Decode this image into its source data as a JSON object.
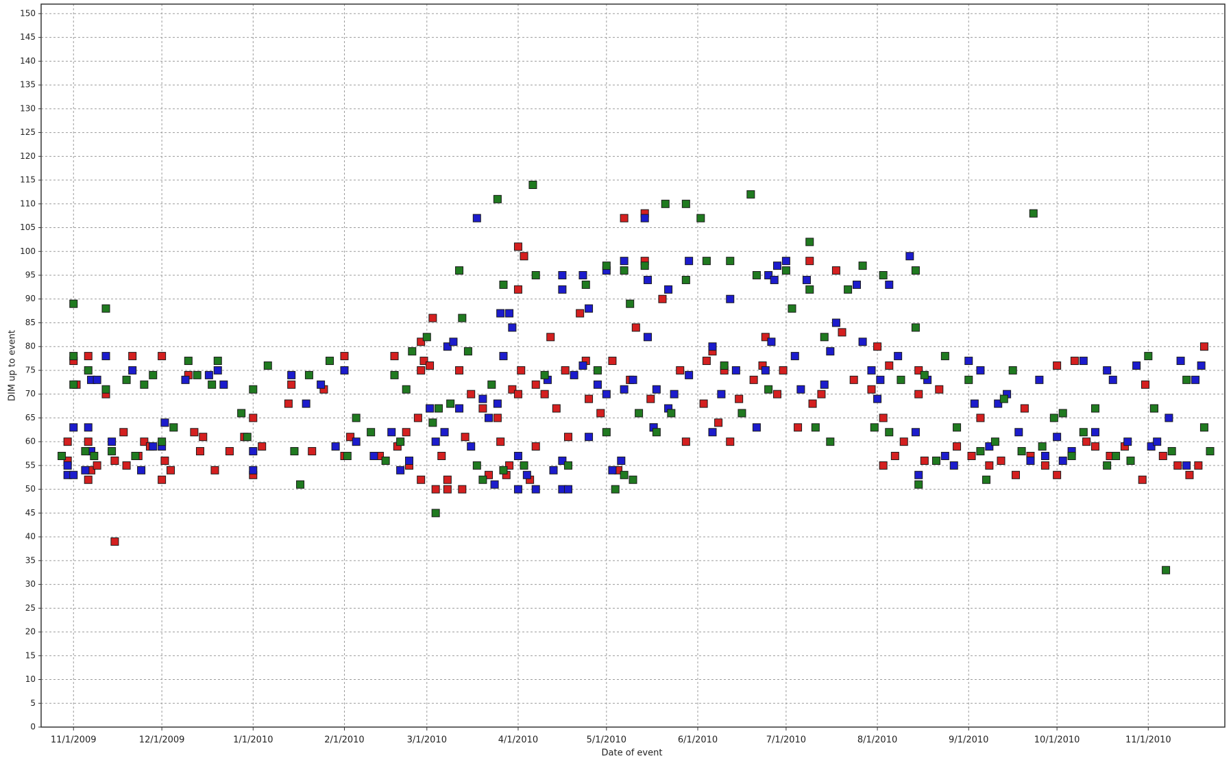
{
  "chart_data": {
    "type": "scatter",
    "xlabel": "Date of event",
    "ylabel": "DIM up to event",
    "xlim": [
      "2009-10-21",
      "2010-11-27"
    ],
    "xticks": [
      {
        "value": "2009-11-01",
        "label": "11/1/2009"
      },
      {
        "value": "2009-12-01",
        "label": "12/1/2009"
      },
      {
        "value": "2010-01-01",
        "label": "1/1/2010"
      },
      {
        "value": "2010-02-01",
        "label": "2/1/2010"
      },
      {
        "value": "2010-03-01",
        "label": "3/1/2010"
      },
      {
        "value": "2010-04-01",
        "label": "4/1/2010"
      },
      {
        "value": "2010-05-01",
        "label": "5/1/2010"
      },
      {
        "value": "2010-06-01",
        "label": "6/1/2010"
      },
      {
        "value": "2010-07-01",
        "label": "7/1/2010"
      },
      {
        "value": "2010-08-01",
        "label": "8/1/2010"
      },
      {
        "value": "2010-09-01",
        "label": "9/1/2010"
      },
      {
        "value": "2010-10-01",
        "label": "10/1/2010"
      },
      {
        "value": "2010-11-01",
        "label": "11/1/2010"
      }
    ],
    "ylim": [
      0,
      152
    ],
    "yticks": [
      0,
      5,
      10,
      15,
      20,
      25,
      30,
      35,
      40,
      45,
      50,
      55,
      60,
      65,
      70,
      75,
      80,
      85,
      90,
      95,
      100,
      105,
      110,
      115,
      120,
      125,
      130,
      135,
      140,
      145,
      150
    ],
    "grid": true,
    "series": [
      {
        "color": "#d42020",
        "x": [
          "2009-10-30",
          "2009-10-30",
          "2009-11-01",
          "2009-11-02",
          "2009-11-06",
          "2009-11-06",
          "2009-11-06",
          "2009-11-07",
          "2009-11-09",
          "2009-11-12",
          "2009-11-15",
          "2009-11-15",
          "2009-11-18",
          "2009-11-19",
          "2009-11-21",
          "2009-11-23",
          "2009-11-25",
          "2009-11-27",
          "2009-12-01",
          "2009-12-01",
          "2009-12-02",
          "2009-12-04",
          "2009-12-10",
          "2009-12-12",
          "2009-12-14",
          "2009-12-15",
          "2009-12-19",
          "2009-12-24",
          "2010-01-01",
          "2010-01-01",
          "2009-12-29",
          "2010-01-04",
          "2010-01-13",
          "2010-01-14",
          "2010-01-21",
          "2010-01-25",
          "2010-02-01",
          "2010-02-01",
          "2010-02-03",
          "2010-02-13",
          "2010-02-18",
          "2010-02-19",
          "2010-02-22",
          "2010-02-23",
          "2010-02-26",
          "2010-02-27",
          "2010-02-27",
          "2010-02-28",
          "2010-02-27",
          "2010-03-03",
          "2010-03-02",
          "2010-03-04",
          "2010-03-06",
          "2010-03-08",
          "2010-03-08",
          "2010-03-12",
          "2010-03-13",
          "2010-03-14",
          "2010-03-16",
          "2010-03-20",
          "2010-03-22",
          "2010-03-25",
          "2010-03-26",
          "2010-03-28",
          "2010-03-29",
          "2010-03-30",
          "2010-04-01",
          "2010-04-01",
          "2010-04-03",
          "2010-04-02",
          "2010-04-01",
          "2010-04-05",
          "2010-04-07",
          "2010-04-07",
          "2010-04-10",
          "2010-04-12",
          "2010-04-14",
          "2010-04-17",
          "2010-04-18",
          "2010-04-22",
          "2010-04-24",
          "2010-04-25",
          "2010-04-29",
          "2010-05-03",
          "2010-05-05",
          "2010-05-07",
          "2010-05-09",
          "2010-05-11",
          "2010-05-14",
          "2010-05-14",
          "2010-05-16",
          "2010-05-17",
          "2010-05-20",
          "2010-05-26",
          "2010-05-28",
          "2010-06-03",
          "2010-06-04",
          "2010-06-06",
          "2010-06-08",
          "2010-06-10",
          "2010-06-12",
          "2010-06-15",
          "2010-06-20",
          "2010-06-23",
          "2010-06-24",
          "2010-06-28",
          "2010-06-30",
          "2010-07-05",
          "2010-07-09",
          "2010-07-10",
          "2010-07-13",
          "2010-07-18",
          "2010-07-20",
          "2010-07-24",
          "2010-07-30",
          "2010-08-01",
          "2010-08-03",
          "2010-08-03",
          "2010-08-05",
          "2010-08-07",
          "2010-08-10",
          "2010-08-15",
          "2010-08-15",
          "2010-08-17",
          "2010-08-22",
          "2010-08-28",
          "2010-09-02",
          "2010-09-05",
          "2010-09-08",
          "2010-09-12",
          "2010-09-17",
          "2010-09-20",
          "2010-09-22",
          "2010-09-27",
          "2010-10-01",
          "2010-10-01",
          "2010-10-07",
          "2010-10-11",
          "2010-10-14",
          "2010-10-19",
          "2010-10-24",
          "2010-10-30",
          "2010-10-31",
          "2010-11-03",
          "2010-11-06",
          "2010-11-11",
          "2010-11-15",
          "2010-11-18",
          "2010-11-20"
        ],
        "values": [
          60,
          56,
          77,
          72,
          78,
          60,
          52,
          54,
          55,
          70,
          56,
          39,
          62,
          55,
          78,
          57,
          60,
          59,
          78,
          52,
          56,
          54,
          74,
          62,
          58,
          61,
          54,
          58,
          53,
          65,
          61,
          59,
          68,
          72,
          58,
          71,
          78,
          57,
          61,
          57,
          78,
          59,
          62,
          55,
          65,
          52,
          75,
          77,
          81,
          86,
          76,
          50,
          57,
          50,
          52,
          75,
          50,
          61,
          70,
          67,
          53,
          65,
          60,
          53,
          55,
          71,
          101,
          92,
          99,
          75,
          70,
          52,
          72,
          59,
          70,
          82,
          67,
          75,
          61,
          87,
          77,
          69,
          66,
          77,
          54,
          107,
          73,
          84,
          98,
          108,
          69,
          63,
          90,
          75,
          60,
          68,
          77,
          79,
          64,
          75,
          60,
          69,
          73,
          76,
          82,
          70,
          75,
          63,
          98,
          68,
          70,
          96,
          83,
          73,
          71,
          80,
          65,
          55,
          76,
          57,
          60,
          70,
          75,
          56,
          71,
          59,
          57,
          65,
          55,
          56,
          53,
          67,
          57,
          55,
          53,
          76,
          77,
          60,
          59,
          57,
          59,
          52,
          72,
          67,
          57,
          55,
          53,
          55,
          80
        ]
      },
      {
        "color": "#1c1ccc",
        "x": [
          "2009-10-30",
          "2009-10-30",
          "2009-11-01",
          "2009-11-01",
          "2009-11-05",
          "2009-11-06",
          "2009-11-07",
          "2009-11-09",
          "2009-11-07",
          "2009-11-12",
          "2009-11-14",
          "2009-11-21",
          "2009-11-24",
          "2009-11-28",
          "2009-12-01",
          "2009-12-02",
          "2009-12-09",
          "2009-12-17",
          "2009-12-20",
          "2009-12-22",
          "2010-01-01",
          "2010-01-01",
          "2010-01-14",
          "2010-01-19",
          "2010-01-24",
          "2010-01-29",
          "2010-02-01",
          "2010-02-05",
          "2010-02-11",
          "2010-02-17",
          "2010-02-20",
          "2010-02-23",
          "2010-03-02",
          "2010-03-04",
          "2010-03-07",
          "2010-03-08",
          "2010-03-10",
          "2010-03-12",
          "2010-03-16",
          "2010-03-18",
          "2010-03-20",
          "2010-03-22",
          "2010-03-24",
          "2010-03-25",
          "2010-03-26",
          "2010-03-27",
          "2010-03-29",
          "2010-03-30",
          "2010-04-01",
          "2010-04-01",
          "2010-04-04",
          "2010-04-07",
          "2010-04-11",
          "2010-04-13",
          "2010-04-16",
          "2010-04-16",
          "2010-04-16",
          "2010-04-16",
          "2010-04-18",
          "2010-04-20",
          "2010-04-23",
          "2010-04-23",
          "2010-04-25",
          "2010-04-25",
          "2010-04-28",
          "2010-05-01",
          "2010-05-01",
          "2010-05-03",
          "2010-05-06",
          "2010-05-07",
          "2010-05-07",
          "2010-05-10",
          "2010-05-14",
          "2010-05-15",
          "2010-05-15",
          "2010-05-17",
          "2010-05-18",
          "2010-05-22",
          "2010-05-22",
          "2010-05-24",
          "2010-05-29",
          "2010-05-29",
          "2010-06-06",
          "2010-06-06",
          "2010-06-09",
          "2010-06-12",
          "2010-06-14",
          "2010-06-21",
          "2010-06-24",
          "2010-06-25",
          "2010-06-26",
          "2010-06-27",
          "2010-06-28",
          "2010-07-01",
          "2010-07-04",
          "2010-07-06",
          "2010-07-08",
          "2010-07-14",
          "2010-07-16",
          "2010-07-18",
          "2010-07-25",
          "2010-07-27",
          "2010-07-30",
          "2010-08-01",
          "2010-08-02",
          "2010-08-05",
          "2010-08-08",
          "2010-08-12",
          "2010-08-14",
          "2010-08-15",
          "2010-08-18",
          "2010-08-24",
          "2010-08-27",
          "2010-09-01",
          "2010-09-03",
          "2010-09-05",
          "2010-09-08",
          "2010-09-11",
          "2010-09-14",
          "2010-09-18",
          "2010-09-22",
          "2010-09-25",
          "2010-09-27",
          "2010-10-01",
          "2010-10-03",
          "2010-10-06",
          "2010-10-10",
          "2010-10-14",
          "2010-10-18",
          "2010-10-20",
          "2010-10-25",
          "2010-10-28",
          "2010-11-02",
          "2010-11-04",
          "2010-11-08",
          "2010-11-12",
          "2010-11-14",
          "2010-11-17",
          "2010-11-19"
        ],
        "values": [
          53,
          55,
          63,
          53,
          54,
          63,
          73,
          73,
          58,
          78,
          60,
          75,
          54,
          59,
          59,
          64,
          73,
          74,
          75,
          72,
          54,
          58,
          74,
          68,
          72,
          59,
          75,
          60,
          57,
          62,
          54,
          56,
          67,
          60,
          62,
          80,
          81,
          67,
          59,
          107,
          69,
          65,
          51,
          68,
          87,
          78,
          87,
          84,
          50,
          57,
          53,
          50,
          73,
          54,
          50,
          95,
          92,
          56,
          50,
          74,
          95,
          76,
          88,
          61,
          72,
          96,
          70,
          54,
          56,
          98,
          71,
          73,
          107,
          94,
          82,
          63,
          71,
          92,
          67,
          70,
          74,
          98,
          62,
          80,
          70,
          90,
          75,
          63,
          75,
          95,
          81,
          94,
          97,
          98,
          78,
          71,
          94,
          72,
          79,
          85,
          93,
          81,
          75,
          69,
          73,
          93,
          78,
          99,
          62,
          53,
          73,
          57,
          55,
          77,
          68,
          75,
          59,
          68,
          70,
          62,
          56,
          73,
          57,
          61,
          56,
          58,
          77,
          62,
          75,
          73,
          60,
          76,
          59,
          60,
          65,
          77,
          55,
          73,
          76
        ]
      },
      {
        "color": "#207a20",
        "x": [
          "2009-10-28",
          "2009-11-01",
          "2009-11-01",
          "2009-11-01",
          "2009-11-05",
          "2009-11-06",
          "2009-11-08",
          "2009-11-12",
          "2009-11-12",
          "2009-11-14",
          "2009-11-19",
          "2009-11-22",
          "2009-11-25",
          "2009-11-28",
          "2009-12-01",
          "2009-12-05",
          "2009-12-10",
          "2009-12-13",
          "2009-12-18",
          "2009-12-20",
          "2009-12-28",
          "2009-12-30",
          "2010-01-01",
          "2010-01-06",
          "2010-01-15",
          "2010-01-17",
          "2010-01-20",
          "2010-01-27",
          "2010-02-02",
          "2010-02-05",
          "2010-02-10",
          "2010-02-15",
          "2010-02-18",
          "2010-02-20",
          "2010-02-22",
          "2010-02-24",
          "2010-03-01",
          "2010-03-03",
          "2010-03-04",
          "2010-03-05",
          "2010-03-09",
          "2010-03-12",
          "2010-03-13",
          "2010-03-15",
          "2010-03-18",
          "2010-03-20",
          "2010-03-23",
          "2010-03-25",
          "2010-03-27",
          "2010-03-27",
          "2010-04-03",
          "2010-04-06",
          "2010-04-07",
          "2010-04-10",
          "2010-04-18",
          "2010-04-24",
          "2010-04-28",
          "2010-05-01",
          "2010-05-01",
          "2010-05-04",
          "2010-05-07",
          "2010-05-07",
          "2010-05-09",
          "2010-05-10",
          "2010-05-12",
          "2010-05-14",
          "2010-05-18",
          "2010-05-21",
          "2010-05-23",
          "2010-05-28",
          "2010-05-28",
          "2010-06-02",
          "2010-06-04",
          "2010-06-10",
          "2010-06-12",
          "2010-06-16",
          "2010-06-19",
          "2010-06-21",
          "2010-06-25",
          "2010-07-01",
          "2010-07-03",
          "2010-07-09",
          "2010-07-09",
          "2010-07-11",
          "2010-07-14",
          "2010-07-16",
          "2010-07-22",
          "2010-07-27",
          "2010-07-31",
          "2010-08-03",
          "2010-08-05",
          "2010-08-09",
          "2010-08-14",
          "2010-08-14",
          "2010-08-15",
          "2010-08-17",
          "2010-08-21",
          "2010-08-24",
          "2010-08-28",
          "2010-09-01",
          "2010-09-05",
          "2010-09-07",
          "2010-09-10",
          "2010-09-13",
          "2010-09-16",
          "2010-09-19",
          "2010-09-23",
          "2010-09-26",
          "2010-09-30",
          "2010-10-03",
          "2010-10-06",
          "2010-10-10",
          "2010-10-14",
          "2010-10-18",
          "2010-10-21",
          "2010-10-26",
          "2010-11-01",
          "2010-11-03",
          "2010-11-07",
          "2010-11-09",
          "2010-11-14",
          "2010-11-20",
          "2010-11-22"
        ],
        "values": [
          57,
          89,
          78,
          72,
          58,
          75,
          57,
          88,
          71,
          58,
          73,
          57,
          72,
          74,
          60,
          63,
          77,
          74,
          72,
          77,
          66,
          61,
          71,
          76,
          58,
          51,
          74,
          77,
          57,
          65,
          62,
          56,
          74,
          60,
          71,
          79,
          82,
          64,
          45,
          67,
          68,
          96,
          86,
          79,
          55,
          52,
          72,
          111,
          93,
          54,
          55,
          114,
          95,
          74,
          55,
          93,
          75,
          62,
          97,
          50,
          53,
          96,
          89,
          52,
          66,
          97,
          62,
          110,
          66,
          110,
          94,
          107,
          98,
          76,
          98,
          66,
          112,
          95,
          71,
          96,
          88,
          102,
          92,
          63,
          82,
          60,
          92,
          97,
          63,
          95,
          62,
          73,
          96,
          84,
          51,
          74,
          56,
          78,
          63,
          73,
          58,
          52,
          60,
          69,
          75,
          58,
          108,
          59,
          65,
          66,
          57,
          62,
          67,
          55,
          57,
          56,
          78,
          67,
          33,
          58,
          73,
          63,
          58
        ]
      }
    ]
  }
}
